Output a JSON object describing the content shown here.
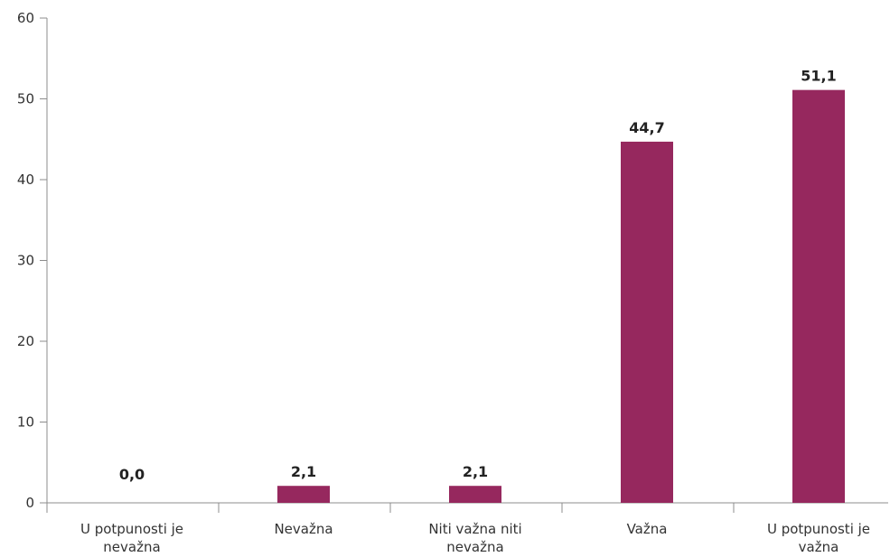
{
  "chart_data": {
    "type": "bar",
    "categories": [
      [
        "U potpunosti je",
        "nevažna"
      ],
      [
        "Nevažna"
      ],
      [
        "Niti važna niti",
        "nevažna"
      ],
      [
        "Važna"
      ],
      [
        "U potpunosti je",
        "važna"
      ]
    ],
    "values": [
      0.0,
      2.1,
      2.1,
      44.7,
      51.1
    ],
    "value_labels": [
      "0,0",
      "2,1",
      "2,1",
      "44,7",
      "51,1"
    ],
    "y_ticks": [
      "0",
      "10",
      "20",
      "30",
      "40",
      "50",
      "60"
    ],
    "ylim": [
      0,
      60
    ],
    "grid": false,
    "legend": "none",
    "title": "",
    "xlabel": "",
    "ylabel": "",
    "bar_color": "#96285e",
    "axis_color": "#8c8c8c"
  }
}
